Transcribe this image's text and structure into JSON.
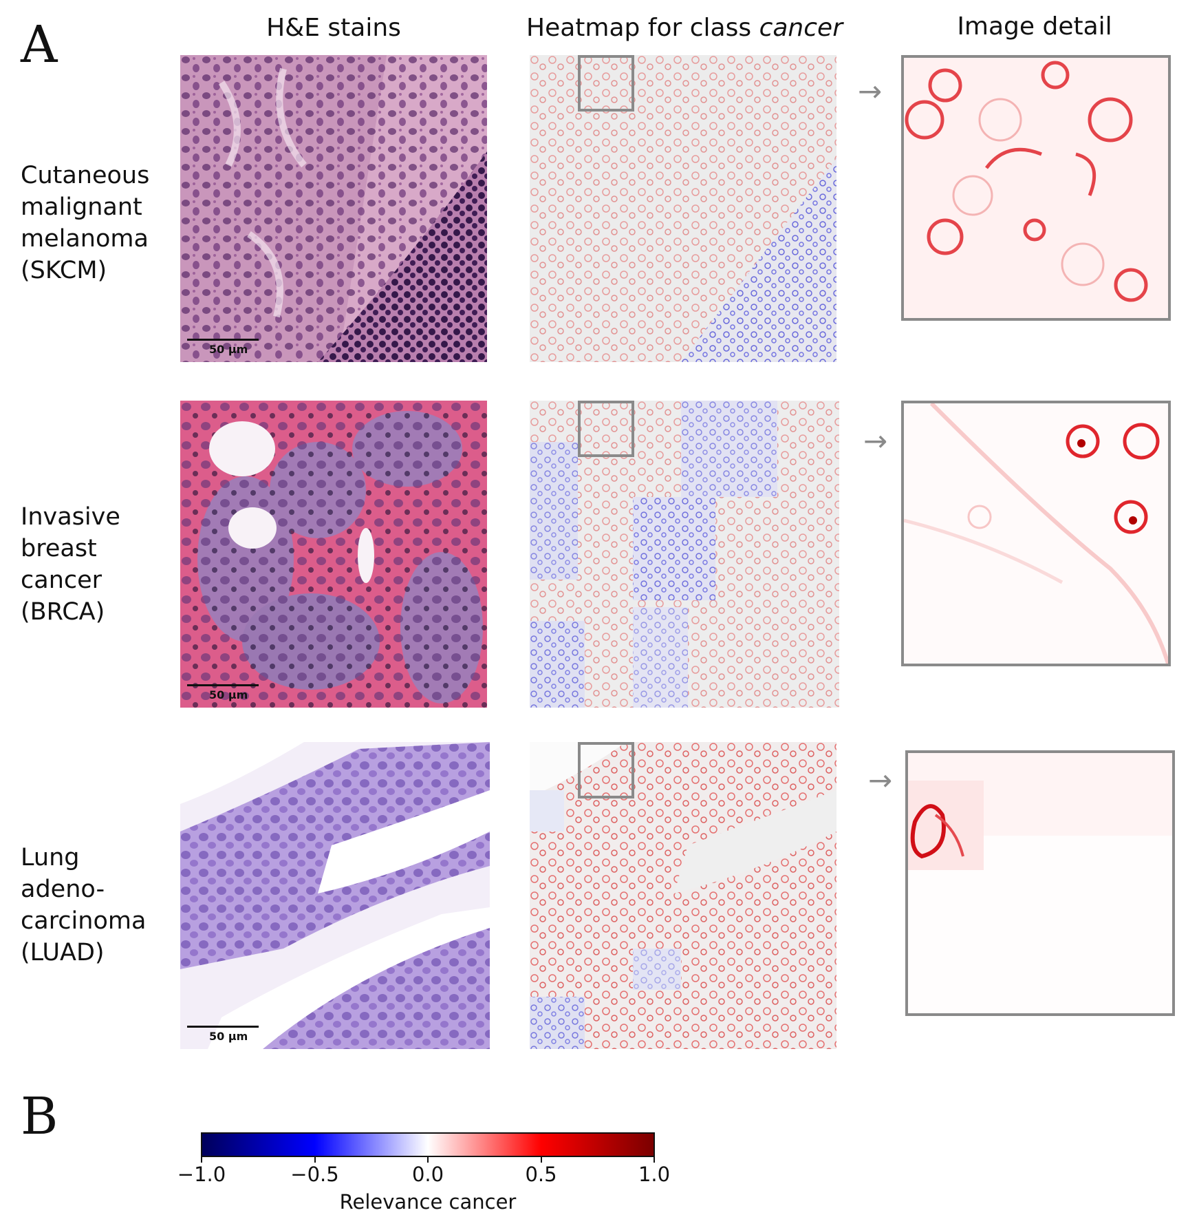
{
  "panel_a": {
    "letter": "A"
  },
  "panel_b": {
    "letter": "B"
  },
  "columns": {
    "he": "H&E stains",
    "heatmap_prefix": "Heatmap for class ",
    "heatmap_class": "cancer",
    "detail": "Image detail"
  },
  "rows": [
    {
      "label": [
        "Cutaneous",
        "malignant",
        "melanoma",
        "(SKCM)"
      ],
      "scale": "50 µm"
    },
    {
      "label": [
        "Invasive",
        "breast",
        "cancer",
        "(BRCA)"
      ],
      "scale": "50 µm"
    },
    {
      "label": [
        "Lung",
        "adeno-",
        "carcinoma",
        "(LUAD)"
      ],
      "scale": "50 µm"
    }
  ],
  "arrow_glyph": "→",
  "colorbar": {
    "label": "Relevance cancer",
    "ticks": [
      "−1.0",
      "−0.5",
      "0.0",
      "0.5",
      "1.0"
    ],
    "range": [
      -1.0,
      1.0
    ],
    "colors": [
      "#00005a",
      "#0000ff",
      "#ffffff",
      "#ff0000",
      "#7a0000"
    ]
  },
  "colors": {
    "he_skcm": "#c58fb8",
    "he_brca": "#d85c88",
    "he_luad": "#a48ad2",
    "frame": "#8a8a8a"
  }
}
